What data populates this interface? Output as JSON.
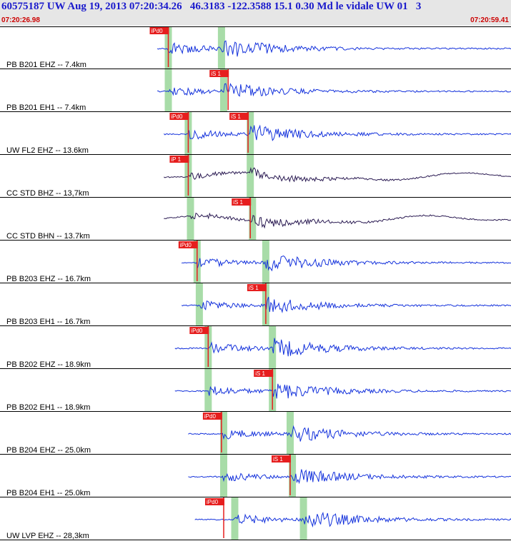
{
  "header": {
    "title": "60575187 UW Aug 19, 2013 07:20:34.26   46.3183 -122.3588 15.1 0.30 Md le vidale UW 01   3",
    "start_time": "07:20:26.98",
    "end_time": "07:20:59.41"
  },
  "colors": {
    "background": "#ffffff",
    "header_bg": "#e6e6e6",
    "title": "#1a1acc",
    "time": "#cc0000",
    "trace": "#1432dc",
    "trace_dark": "#2a1a52",
    "pick_box": "#e61e1e",
    "window": "#a8dca8"
  },
  "traces": [
    {
      "label": "PB B201 EHZ -- 7.4km",
      "color": "#1432dc",
      "picks": [
        {
          "text": "iPd0",
          "t": 0.5
        }
      ],
      "p": 0.5,
      "s": 2.9,
      "x0": 0.0,
      "x1": 20.5,
      "amp": 0.85
    },
    {
      "label": "PB B201 EH1 -- 7.4km",
      "color": "#1432dc",
      "picks": [
        {
          "text": "iS 1",
          "t": 3.2
        }
      ],
      "p": 0.5,
      "s": 3.0,
      "x0": 0.0,
      "x1": 20.5,
      "amp": 0.7
    },
    {
      "label": "UW FL2 EHZ -- 13.6km",
      "color": "#1432dc",
      "picks": [
        {
          "text": "iPd0",
          "t": 1.4
        },
        {
          "text": "iS 1",
          "t": 4.1
        }
      ],
      "p": 1.4,
      "s": 4.2,
      "x0": 0.3,
      "x1": 20.8,
      "amp": 0.75
    },
    {
      "label": "CC STD BHZ -- 13,7km",
      "color": "#2a1a52",
      "picks": [
        {
          "text": "iP 1",
          "t": 1.4
        }
      ],
      "p": 1.4,
      "s": 4.2,
      "x0": 0.3,
      "x1": 20.8,
      "amp": 0.55
    },
    {
      "label": "CC STD BHN -- 13.7km",
      "color": "#2a1a52",
      "picks": [
        {
          "text": "iS 1",
          "t": 4.2
        }
      ],
      "p": 1.5,
      "s": 4.3,
      "x0": 0.3,
      "x1": 20.8,
      "amp": 0.55
    },
    {
      "label": "PB B203 EHZ -- 16.7km",
      "color": "#1432dc",
      "picks": [
        {
          "text": "iPd0",
          "t": 1.8
        }
      ],
      "p": 1.8,
      "s": 4.9,
      "x0": 1.1,
      "x1": 21.1,
      "amp": 0.75
    },
    {
      "label": "PB B203 EH1 -- 16.7km",
      "color": "#1432dc",
      "picks": [
        {
          "text": "iS 1",
          "t": 4.9
        }
      ],
      "p": 1.9,
      "s": 4.9,
      "x0": 1.1,
      "x1": 21.1,
      "amp": 0.7
    },
    {
      "label": "PB B202 EHZ -- 18.9km",
      "color": "#1432dc",
      "picks": [
        {
          "text": "iPd0",
          "t": 2.3
        }
      ],
      "p": 2.3,
      "s": 5.2,
      "x0": 0.8,
      "x1": 21.2,
      "amp": 0.8
    },
    {
      "label": "PB B202 EH1 -- 18.9km",
      "color": "#1432dc",
      "picks": [
        {
          "text": "iS 1",
          "t": 5.2
        }
      ],
      "p": 2.3,
      "s": 5.2,
      "x0": 0.8,
      "x1": 21.2,
      "amp": 0.75
    },
    {
      "label": "PB B204 EHZ -- 25.0km",
      "color": "#1432dc",
      "picks": [
        {
          "text": "iPd0",
          "t": 2.9
        }
      ],
      "p": 3.0,
      "s": 6.0,
      "x0": 1.4,
      "x1": 21.2,
      "amp": 0.7
    },
    {
      "label": "PB B204 EH1 -- 25.0km",
      "color": "#1432dc",
      "picks": [
        {
          "text": "iS 1",
          "t": 6.0
        }
      ],
      "p": 3.0,
      "s": 6.1,
      "x0": 1.4,
      "x1": 21.2,
      "amp": 0.7
    },
    {
      "label": "UW LVP EHZ -- 28,3km",
      "color": "#1432dc",
      "picks": [
        {
          "text": "iPd0",
          "t": 3.0
        }
      ],
      "p": 3.5,
      "s": 6.6,
      "x0": 1.7,
      "x1": 22.0,
      "amp": 0.8
    }
  ]
}
